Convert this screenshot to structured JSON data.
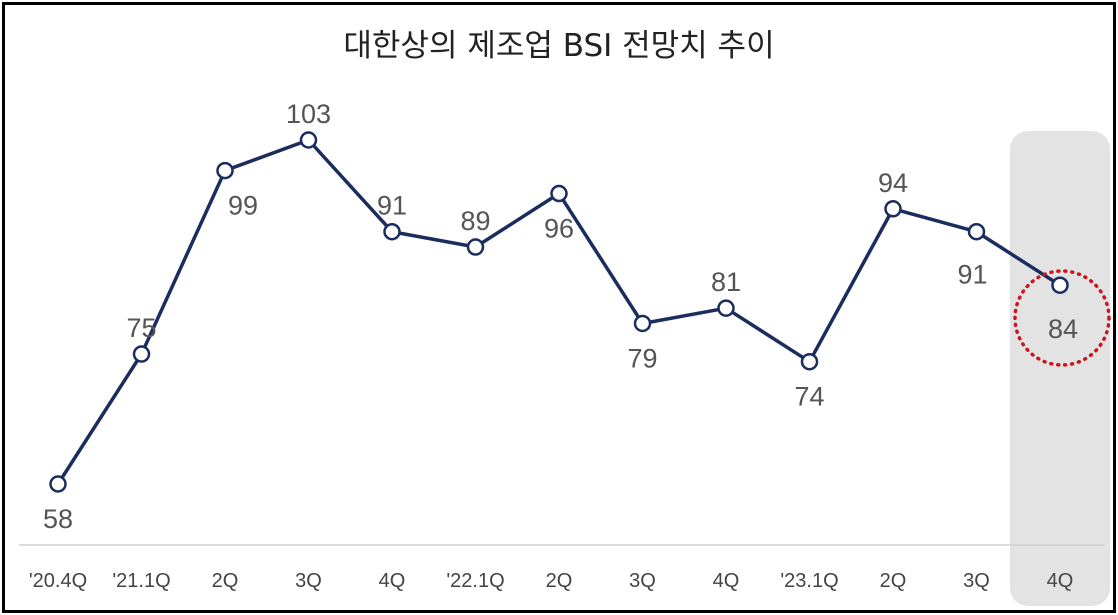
{
  "chart_data": {
    "type": "line",
    "title": "대한상의 제조업 BSI 전망치 추이",
    "categories": [
      "'20.4Q",
      "'21.1Q",
      "2Q",
      "3Q",
      "4Q",
      "'22.1Q",
      "2Q",
      "3Q",
      "4Q",
      "'23.1Q",
      "2Q",
      "3Q",
      "4Q"
    ],
    "series": [
      {
        "values": [
          58,
          75,
          99,
          103,
          91,
          89,
          96,
          79,
          81,
          74,
          94,
          91,
          84
        ]
      }
    ],
    "label_position": [
      "below",
      "above",
      "below",
      "above",
      "above",
      "above",
      "below",
      "below",
      "above",
      "below",
      "above",
      "below",
      "below"
    ],
    "highlight_index": 12,
    "ylim": [
      44,
      110
    ],
    "grid": false,
    "colors": {
      "line": "#1b2d5e",
      "marker_fill": "#ffffff",
      "label": "#555555",
      "axis": "#cfcfcf",
      "tick_label": "#444444",
      "highlight_band": "#e3e3e3",
      "highlight_circle": "#c8161d"
    }
  }
}
